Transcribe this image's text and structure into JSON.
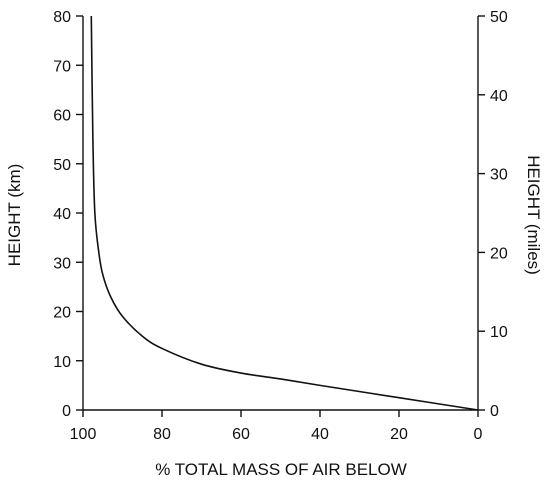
{
  "chart_data": {
    "type": "line",
    "title": "",
    "xlabel": "% TOTAL MASS OF AIR BELOW",
    "ylabel_left": "HEIGHT (km)",
    "ylabel_right": "HEIGHT (miles)",
    "xlim": [
      100,
      0
    ],
    "ylim_left": [
      0,
      80
    ],
    "ylim_right": [
      0,
      50
    ],
    "x_ticks": [
      100,
      80,
      60,
      40,
      20,
      0
    ],
    "y_ticks_left": [
      0,
      10,
      20,
      30,
      40,
      50,
      60,
      70,
      80
    ],
    "y_ticks_right": [
      0,
      10,
      20,
      30,
      40,
      50
    ],
    "grid": false,
    "series": [
      {
        "x": [
          0,
          20,
          40,
          50,
          60,
          70,
          80,
          85,
          90,
          93,
          95,
          96,
          97,
          97.5,
          97.9
        ],
        "y": [
          0,
          2.5,
          5,
          6.3,
          7.5,
          9.3,
          12.5,
          15,
          19,
          23,
          27.5,
          32,
          40,
          55,
          80
        ]
      }
    ]
  }
}
